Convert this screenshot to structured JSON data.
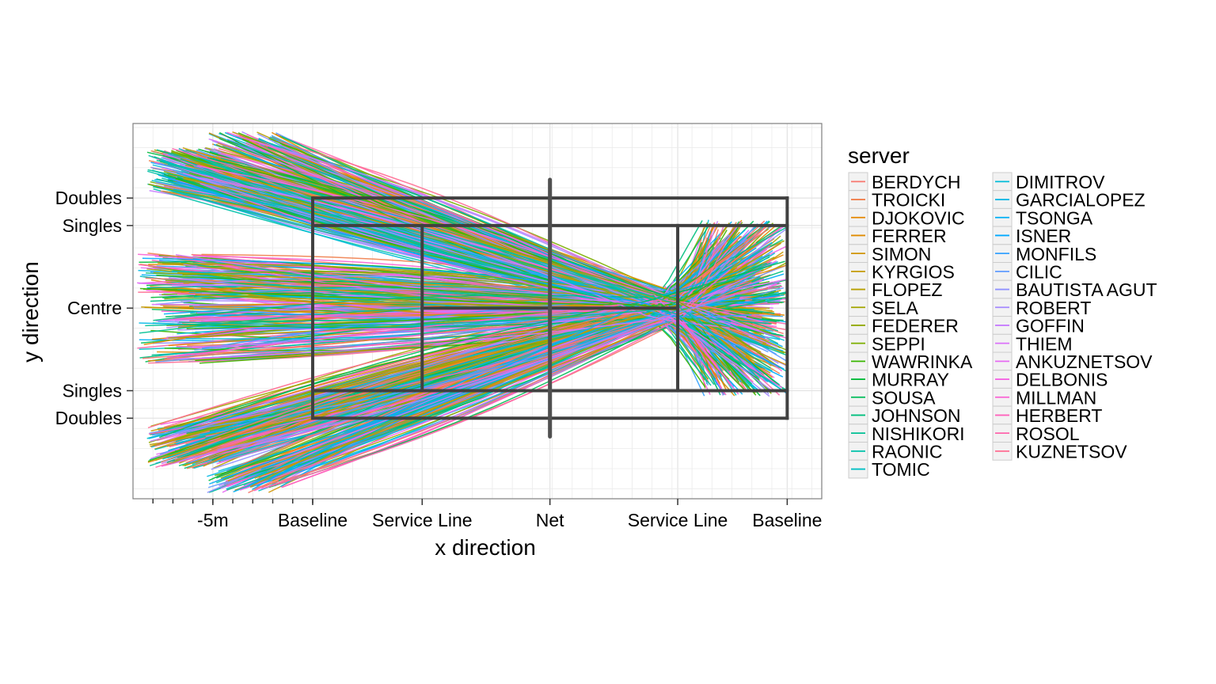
{
  "chart_data": {
    "type": "line",
    "xlabel": "x direction",
    "ylabel": "y direction",
    "x_ticks": [
      {
        "label": "-5m",
        "value": -5
      },
      {
        "label": "Baseline",
        "value": 0
      },
      {
        "label": "Service Line",
        "value": 5.485
      },
      {
        "label": "Net",
        "value": 11.885
      },
      {
        "label": "Service Line",
        "value": 18.285
      },
      {
        "label": "Baseline",
        "value": 23.77
      }
    ],
    "x_minor_ticks": [
      -8,
      -7,
      -6,
      -5,
      -4,
      -3,
      -2,
      -1,
      0
    ],
    "y_ticks": [
      {
        "label": "Doubles",
        "value": 5.485
      },
      {
        "label": "Singles",
        "value": 4.115
      },
      {
        "label": "Centre",
        "value": 0
      },
      {
        "label": "Singles",
        "value": -4.115
      },
      {
        "label": "Doubles",
        "value": -5.485
      }
    ],
    "xlim": [
      -9,
      25.5
    ],
    "ylim": [
      -9.5,
      9.2
    ],
    "grid": true,
    "legend_title": "server",
    "legend_position": "right",
    "court": {
      "length": 23.77,
      "doubles_half_width": 5.485,
      "singles_half_width": 4.115,
      "service_line_near": 5.485,
      "service_line_far": 18.285,
      "net_x": 11.885,
      "net_half_height": 6.4
    },
    "series": [
      {
        "name": "BERDYCH",
        "color": "#F8766D"
      },
      {
        "name": "TROICKI",
        "color": "#F07E4B"
      },
      {
        "name": "DJOKOVIC",
        "color": "#E58700"
      },
      {
        "name": "FERRER",
        "color": "#E08B00"
      },
      {
        "name": "SIMON",
        "color": "#D09400"
      },
      {
        "name": "KYRGIOS",
        "color": "#C49A00"
      },
      {
        "name": "FLOPEZ",
        "color": "#B79F00"
      },
      {
        "name": "SELA",
        "color": "#A3A500"
      },
      {
        "name": "FEDERER",
        "color": "#93AA00"
      },
      {
        "name": "SEPPI",
        "color": "#7CAE00"
      },
      {
        "name": "WAWRINKA",
        "color": "#39B600"
      },
      {
        "name": "MURRAY",
        "color": "#00BA38"
      },
      {
        "name": "SOUSA",
        "color": "#00BC59"
      },
      {
        "name": "JOHNSON",
        "color": "#00BF7D"
      },
      {
        "name": "NISHIKORI",
        "color": "#00C094"
      },
      {
        "name": "RAONIC",
        "color": "#00C1AA"
      },
      {
        "name": "TOMIC",
        "color": "#00BFC4"
      },
      {
        "name": "DIMITROV",
        "color": "#00BCD8"
      },
      {
        "name": "GARCIALOPEZ",
        "color": "#00B8E5"
      },
      {
        "name": "TSONGA",
        "color": "#00B0F6"
      },
      {
        "name": "ISNER",
        "color": "#00A9FF"
      },
      {
        "name": "MONFILS",
        "color": "#35A2FF"
      },
      {
        "name": "CILIC",
        "color": "#619CFF"
      },
      {
        "name": "BAUTISTA AGUT",
        "color": "#8F91FF"
      },
      {
        "name": "ROBERT",
        "color": "#A58AFF"
      },
      {
        "name": "GOFFIN",
        "color": "#C77CFF"
      },
      {
        "name": "THIEM",
        "color": "#DC71FA"
      },
      {
        "name": "ANKUZNETSOV",
        "color": "#E76BF3"
      },
      {
        "name": "DELBONIS",
        "color": "#F564E3"
      },
      {
        "name": "MILLMAN",
        "color": "#FA62D4"
      },
      {
        "name": "HERBERT",
        "color": "#FF62BC"
      },
      {
        "name": "ROSOL",
        "color": "#FF65AC"
      },
      {
        "name": "KUZNETSOV",
        "color": "#FF6C91"
      }
    ]
  }
}
